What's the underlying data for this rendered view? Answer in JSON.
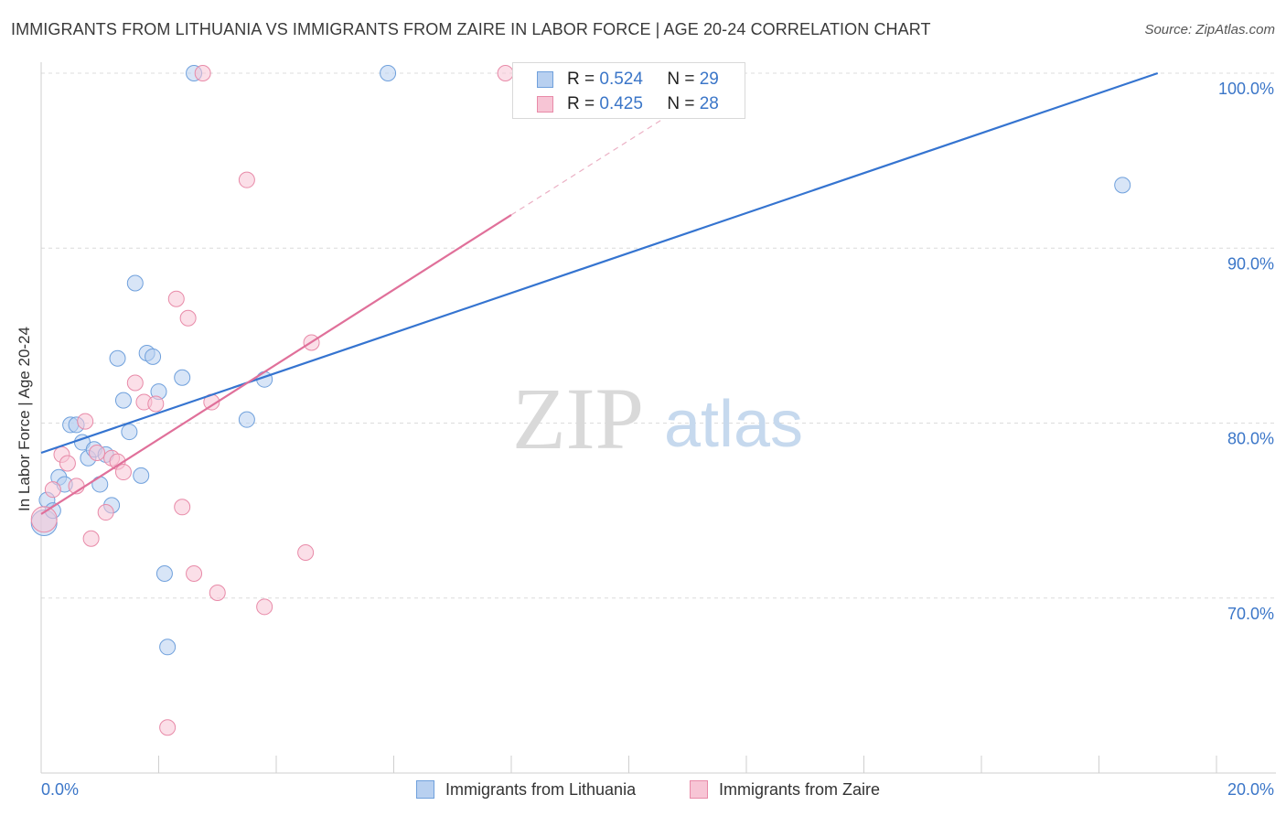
{
  "header": {
    "title": "IMMIGRANTS FROM LITHUANIA VS IMMIGRANTS FROM ZAIRE IN LABOR FORCE | AGE 20-24 CORRELATION CHART",
    "source": "Source: ZipAtlas.com"
  },
  "watermark": {
    "zip": "ZIP",
    "atlas": "atlas"
  },
  "legend": {
    "items": [
      {
        "r_label": "R = ",
        "r_value": "0.524",
        "n_label": "N = ",
        "n_value": "29"
      },
      {
        "r_label": "R = ",
        "r_value": "0.425",
        "n_label": "N = ",
        "n_value": "28"
      }
    ]
  },
  "bottom_legend": {
    "items": [
      {
        "label": "Immigrants from Lithuania"
      },
      {
        "label": "Immigrants from Zaire"
      }
    ]
  },
  "chart_data": {
    "type": "scatter",
    "title": "IMMIGRANTS FROM LITHUANIA VS IMMIGRANTS FROM ZAIRE IN LABOR FORCE | AGE 20-24 CORRELATION CHART",
    "xlabel": "",
    "ylabel": "In Labor Force | Age 20-24",
    "xlim": [
      0,
      20
    ],
    "ylim": [
      60,
      100
    ],
    "x_tick_labels": [
      "0.0%",
      "20.0%"
    ],
    "y_ticks": [
      70,
      80,
      90,
      100
    ],
    "y_tick_labels": [
      "70.0%",
      "80.0%",
      "90.0%",
      "100.0%"
    ],
    "grid": true,
    "legend_position": "top-center",
    "series": [
      {
        "name": "Immigrants from Lithuania",
        "color": "#6fa0dc",
        "fill": "#b8d0f0",
        "r": 0.524,
        "n": 29,
        "trend": {
          "x": [
            0,
            19.0
          ],
          "y": [
            78.3,
            100.0
          ],
          "style": "solid"
        },
        "points": [
          [
            0.05,
            74.3
          ],
          [
            0.1,
            75.6
          ],
          [
            0.2,
            75.0
          ],
          [
            0.3,
            76.9
          ],
          [
            0.4,
            76.5
          ],
          [
            0.5,
            79.9
          ],
          [
            0.6,
            79.9
          ],
          [
            0.7,
            78.9
          ],
          [
            0.8,
            78.0
          ],
          [
            0.9,
            78.5
          ],
          [
            1.0,
            76.5
          ],
          [
            1.1,
            78.2
          ],
          [
            1.2,
            75.3
          ],
          [
            1.3,
            83.7
          ],
          [
            1.4,
            81.3
          ],
          [
            1.5,
            79.5
          ],
          [
            1.6,
            88.0
          ],
          [
            1.7,
            77.0
          ],
          [
            1.8,
            84.0
          ],
          [
            1.9,
            83.8
          ],
          [
            2.0,
            81.8
          ],
          [
            2.1,
            71.4
          ],
          [
            2.15,
            67.2
          ],
          [
            2.4,
            82.6
          ],
          [
            2.6,
            100.0
          ],
          [
            3.5,
            80.2
          ],
          [
            3.8,
            82.5
          ],
          [
            5.9,
            100.0
          ],
          [
            18.4,
            93.6
          ]
        ]
      },
      {
        "name": "Immigrants from Zaire",
        "color": "#e88aa8",
        "fill": "#f7c5d5",
        "r": 0.425,
        "n": 28,
        "trend": {
          "x": [
            0,
            8.0
          ],
          "y": [
            74.8,
            91.9
          ],
          "style": "solid",
          "extension": {
            "x": [
              8.0,
              11.2
            ],
            "y": [
              91.9,
              98.7
            ],
            "style": "dashed"
          }
        },
        "points": [
          [
            0.05,
            74.5
          ],
          [
            0.2,
            76.2
          ],
          [
            0.35,
            78.2
          ],
          [
            0.45,
            77.7
          ],
          [
            0.6,
            76.4
          ],
          [
            0.75,
            80.1
          ],
          [
            0.85,
            73.4
          ],
          [
            0.95,
            78.3
          ],
          [
            1.1,
            74.9
          ],
          [
            1.2,
            78.0
          ],
          [
            1.3,
            77.8
          ],
          [
            1.4,
            77.2
          ],
          [
            1.6,
            82.3
          ],
          [
            1.75,
            81.2
          ],
          [
            1.95,
            81.1
          ],
          [
            2.3,
            87.1
          ],
          [
            2.4,
            75.2
          ],
          [
            2.5,
            86.0
          ],
          [
            2.6,
            71.4
          ],
          [
            2.75,
            100.0
          ],
          [
            2.9,
            81.2
          ],
          [
            3.0,
            70.3
          ],
          [
            3.5,
            93.9
          ],
          [
            3.8,
            69.5
          ],
          [
            4.5,
            72.6
          ],
          [
            4.6,
            84.6
          ],
          [
            7.9,
            100.0
          ],
          [
            2.15,
            62.6
          ]
        ]
      }
    ]
  }
}
